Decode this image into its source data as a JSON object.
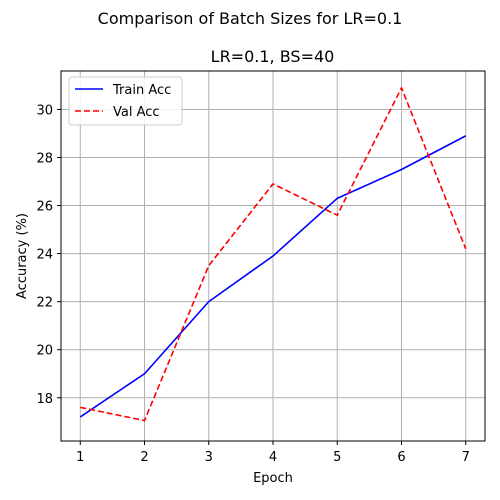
{
  "chart_data": {
    "type": "line",
    "suptitle": "Comparison of Batch Sizes for LR=0.1",
    "title": "LR=0.1, BS=40",
    "xlabel": "Epoch",
    "ylabel": "Accuracy (%)",
    "x": [
      1,
      2,
      3,
      4,
      5,
      6,
      7
    ],
    "xticks": [
      1,
      2,
      3,
      4,
      5,
      6,
      7
    ],
    "yticks": [
      18,
      20,
      22,
      24,
      26,
      28,
      30
    ],
    "xlim": [
      0.7,
      7.3
    ],
    "ylim": [
      16.2,
      31.6
    ],
    "grid": true,
    "legend_position": "upper-left",
    "series": [
      {
        "name": "Train Acc",
        "values": [
          17.2,
          19.0,
          22.0,
          23.9,
          26.3,
          27.5,
          28.9
        ],
        "color": "#0000ff",
        "style": "solid"
      },
      {
        "name": "Val Acc",
        "values": [
          17.6,
          17.05,
          23.5,
          26.9,
          25.6,
          30.9,
          24.2
        ],
        "color": "#ff0000",
        "style": "dashed"
      }
    ]
  }
}
